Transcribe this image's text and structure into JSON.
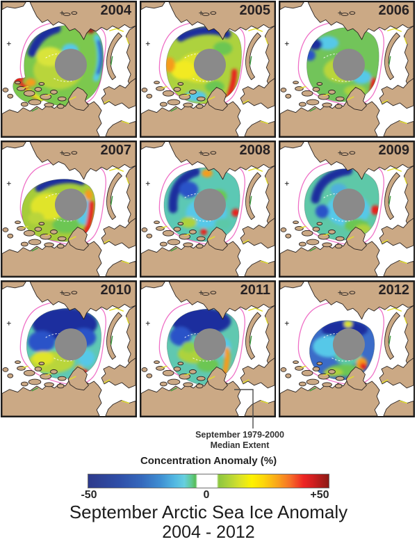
{
  "figure": {
    "panels": [
      {
        "year": "2004"
      },
      {
        "year": "2005"
      },
      {
        "year": "2006"
      },
      {
        "year": "2007"
      },
      {
        "year": "2008"
      },
      {
        "year": "2009"
      },
      {
        "year": "2010"
      },
      {
        "year": "2011"
      },
      {
        "year": "2012"
      }
    ],
    "annotation": {
      "line1": "September 1979-2000",
      "line2": "Median Extent"
    },
    "colorbar": {
      "title": "Concentration Anomaly (%)",
      "tick_labels": [
        "-50",
        "0",
        "+50"
      ],
      "range": [
        -50,
        50
      ]
    },
    "title": {
      "line1": "September Arctic Sea Ice Anomaly",
      "line2": "2004 - 2012"
    },
    "colors": {
      "land": "#cba985",
      "ocean": "#ffffff",
      "median_extent_line": "#ef6fc6",
      "pole_hole": "#8a8a8a",
      "panel_border": "#1c1c1c",
      "colorbar_min": "#2d3a8c",
      "colorbar_mid": "#ffffff",
      "colorbar_max": "#8b1a15"
    }
  }
}
